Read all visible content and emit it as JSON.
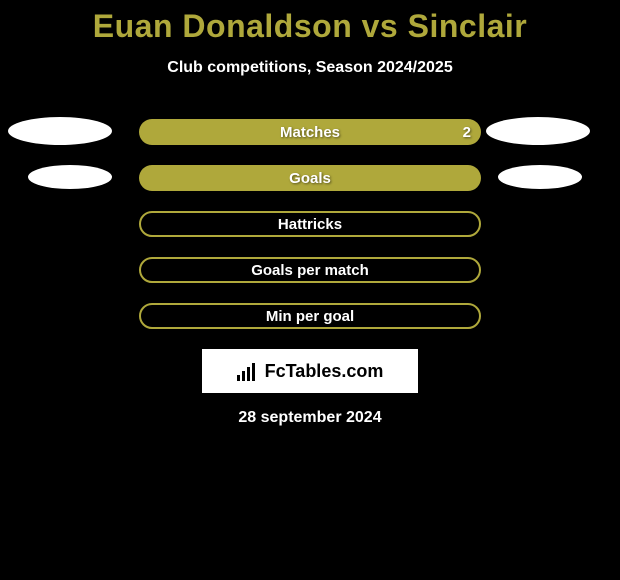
{
  "title": "Euan Donaldson vs Sinclair",
  "subtitle": "Club competitions, Season 2024/2025",
  "date": "28 september 2024",
  "logo_text": "FcTables.com",
  "palette": {
    "accent": "#afa83b",
    "background": "#000000",
    "text_light": "#ffffff",
    "dot_color": "#ffffff"
  },
  "layout": {
    "pill_width": 342,
    "pill_height": 26,
    "pill_radius": 13,
    "row_gap": 20,
    "title_fontsize": 32,
    "subtitle_fontsize": 16,
    "label_fontsize": 15
  },
  "rows": [
    {
      "label": "Matches",
      "filled": true,
      "value_right": "2",
      "show_left_dot": true,
      "show_right_dot": true
    },
    {
      "label": "Goals",
      "filled": true,
      "value_right": "",
      "show_left_dot": true,
      "show_right_dot": true
    },
    {
      "label": "Hattricks",
      "filled": false,
      "value_right": "",
      "show_left_dot": false,
      "show_right_dot": false
    },
    {
      "label": "Goals per match",
      "filled": false,
      "value_right": "",
      "show_left_dot": false,
      "show_right_dot": false
    },
    {
      "label": "Min per goal",
      "filled": false,
      "value_right": "",
      "show_left_dot": false,
      "show_right_dot": false
    }
  ]
}
